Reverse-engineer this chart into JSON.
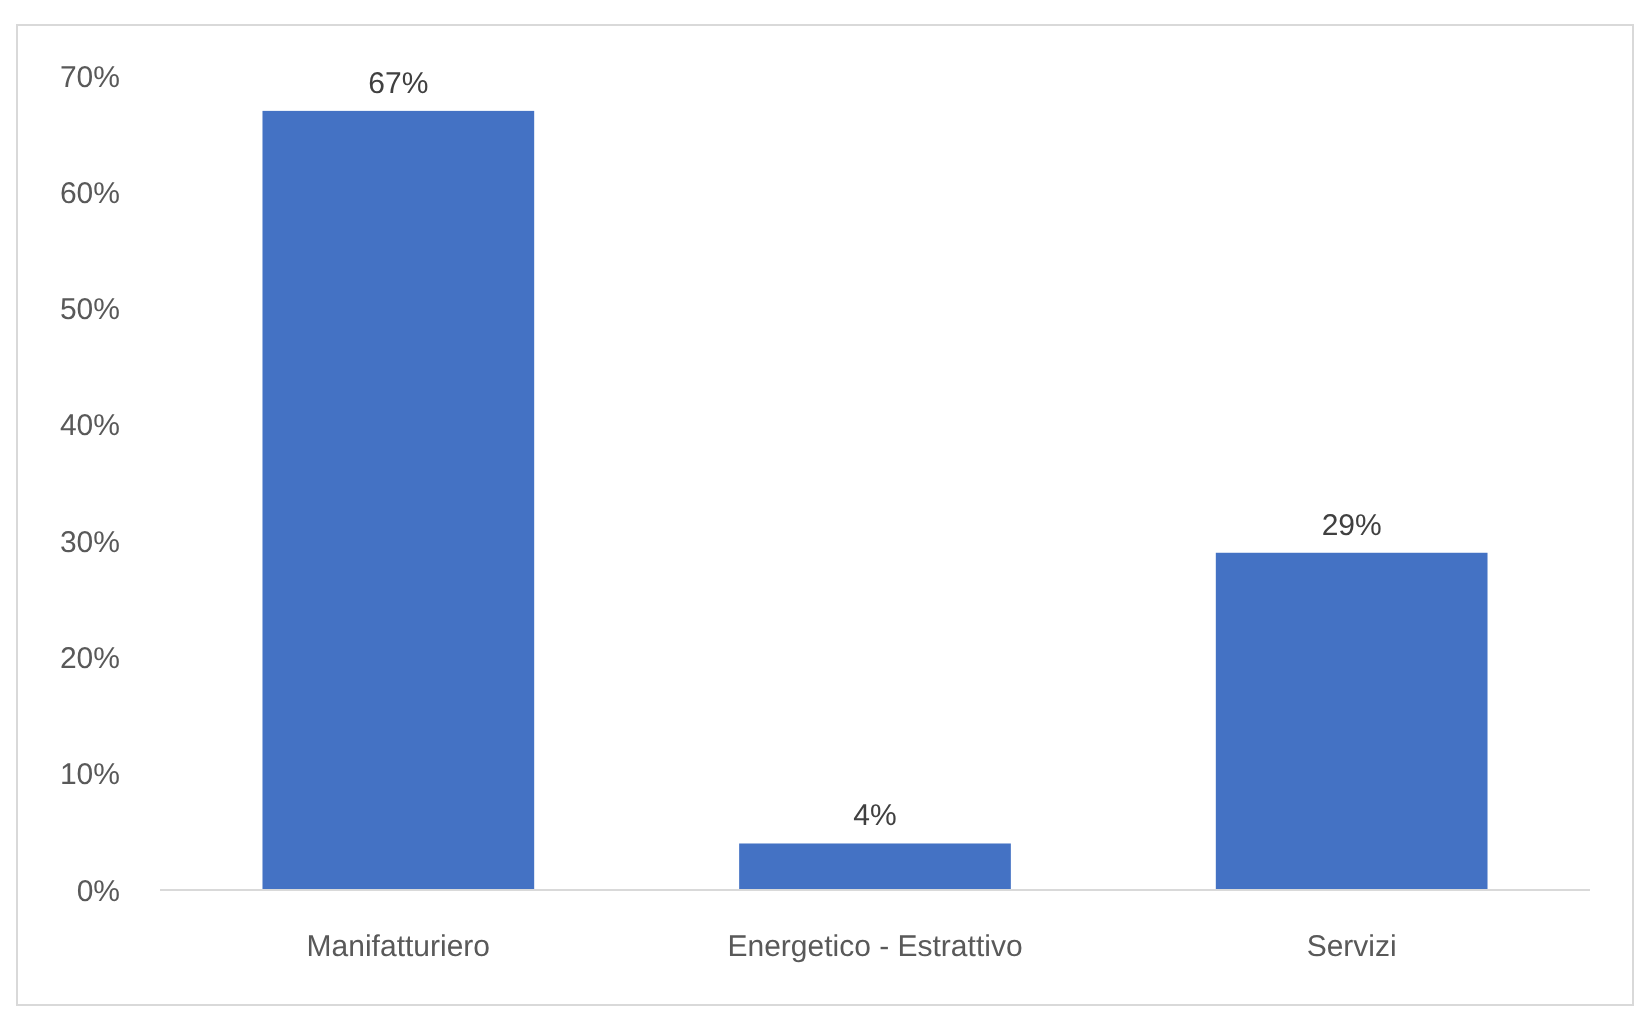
{
  "chart_data": {
    "type": "bar",
    "categories": [
      "Manifatturiero",
      "Energetico - Estrattivo",
      "Servizi"
    ],
    "values": [
      67,
      4,
      29
    ],
    "value_labels": [
      "67%",
      "4%",
      "29%"
    ],
    "color": "#4472c4",
    "ylim": [
      0,
      70
    ],
    "yticks": [
      {
        "value": 0,
        "label": "0%"
      },
      {
        "value": 10,
        "label": "10%"
      },
      {
        "value": 20,
        "label": "20%"
      },
      {
        "value": 30,
        "label": "30%"
      },
      {
        "value": 40,
        "label": "40%"
      },
      {
        "value": 50,
        "label": "50%"
      },
      {
        "value": 60,
        "label": "60%"
      },
      {
        "value": 70,
        "label": "70%"
      }
    ]
  }
}
